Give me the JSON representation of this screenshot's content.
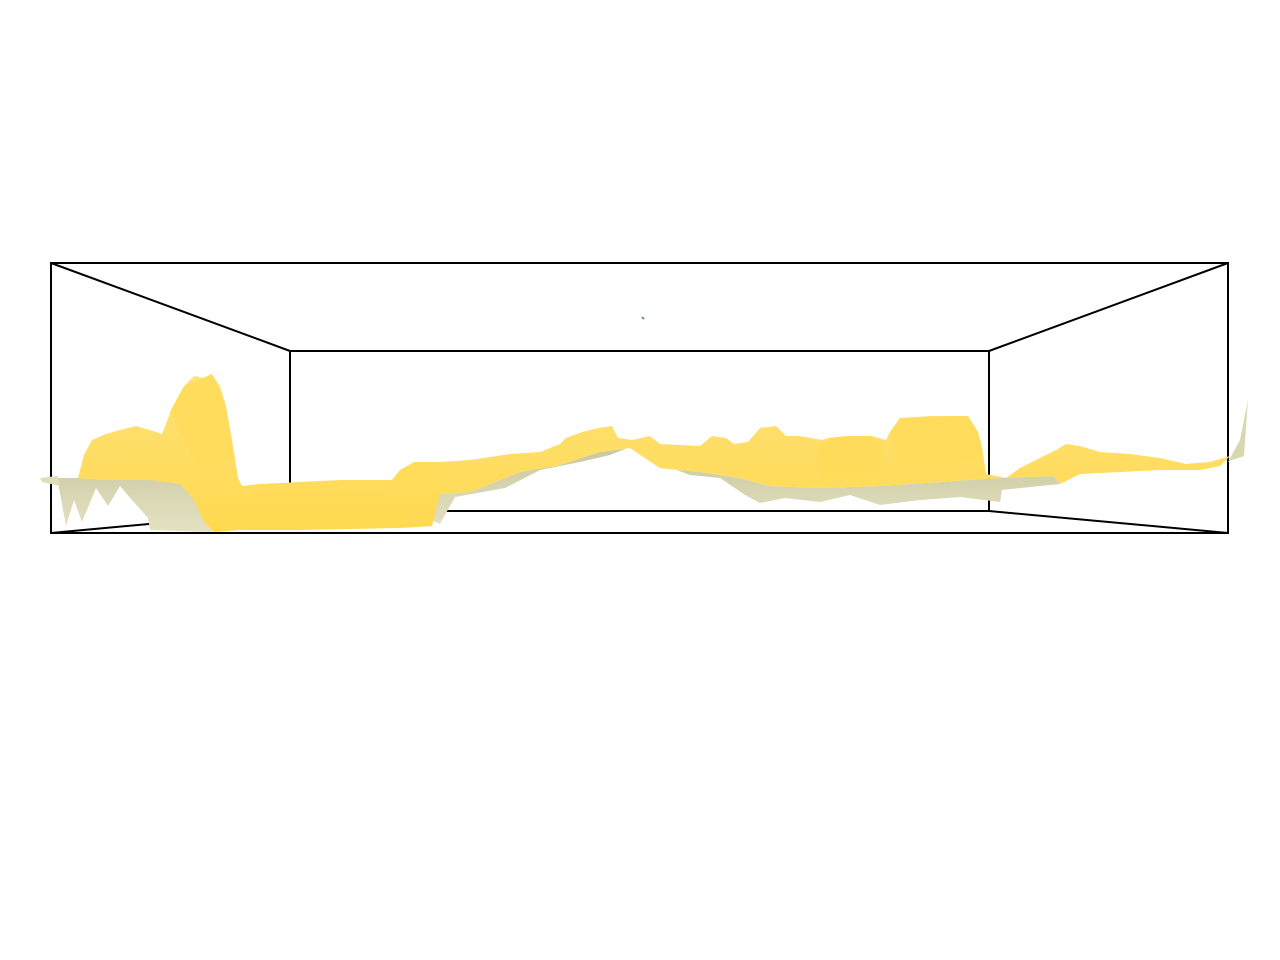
{
  "scene": {
    "background_color": "#ffffff",
    "box_edge_color": "#000000",
    "surface_top_color": "#ffd94f",
    "surface_top_highlight_color": "#ffe27a",
    "surface_under_color": "#d9d7b0",
    "surface_under_shadow_color": "#c9c79f",
    "marker_color": "#2e8b2e",
    "grid": false,
    "axes_labels": false
  }
}
